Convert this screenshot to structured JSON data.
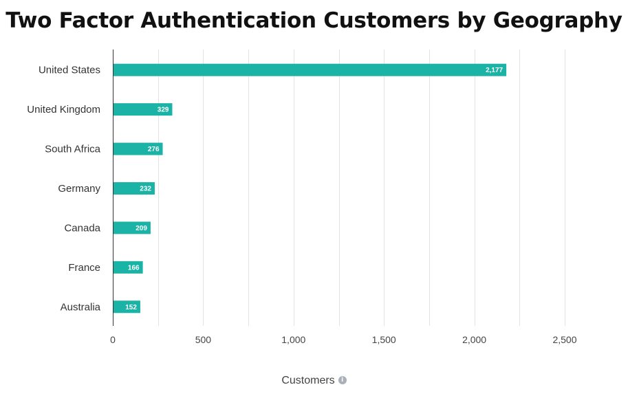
{
  "chart_data": {
    "type": "bar",
    "orientation": "horizontal",
    "title": "Two Factor Authentication Customers by Geography",
    "xlabel": "Customers",
    "ylabel": "",
    "categories": [
      "United States",
      "United Kingdom",
      "South Africa",
      "Germany",
      "Canada",
      "France",
      "Australia"
    ],
    "values": [
      2177,
      329,
      276,
      232,
      209,
      166,
      152
    ],
    "value_labels": [
      "2,177",
      "329",
      "276",
      "232",
      "209",
      "166",
      "152"
    ],
    "xlim": [
      0,
      2500
    ],
    "x_ticks": [
      0,
      500,
      1000,
      1500,
      2000,
      2500
    ],
    "x_tick_labels": [
      "0",
      "500",
      "1,000",
      "1,500",
      "2,000",
      "2,500"
    ],
    "grid": true,
    "bar_color": "#1ab3a6",
    "grid_color": "#e3e3e3"
  },
  "icons": {
    "axis_info": "info-icon"
  }
}
